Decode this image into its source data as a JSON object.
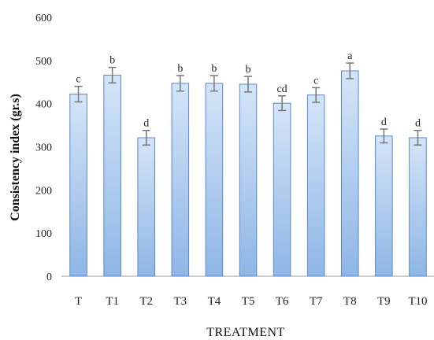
{
  "chart_data": {
    "type": "bar",
    "title": "",
    "xlabel": "TREATMENT",
    "ylabel": "Consistency index (gr.s)",
    "ylim": [
      0,
      600
    ],
    "yticks": [
      "0",
      "100",
      "200",
      "300",
      "400",
      "500",
      "600"
    ],
    "grid": false,
    "legend": "none",
    "categories": [
      "T",
      "T1",
      "T2",
      "T3",
      "T4",
      "T5",
      "T6",
      "T7",
      "T8",
      "T9",
      "T10"
    ],
    "values": [
      422,
      466,
      321,
      447,
      447,
      445,
      401,
      420,
      476,
      325,
      321
    ],
    "errors": [
      18,
      18,
      17,
      18,
      18,
      18,
      17,
      17,
      18,
      16,
      17
    ],
    "significance": [
      "c",
      "b",
      "d",
      "b",
      "b",
      "b",
      "cd",
      "c",
      "a",
      "d",
      "d"
    ],
    "colors": {
      "bar_top": "#d4e5f8",
      "bar_bottom": "#8fb6e6",
      "bar_edge": "#5a8ac8",
      "error": "#777777",
      "axis": "#9a9a9a"
    }
  }
}
